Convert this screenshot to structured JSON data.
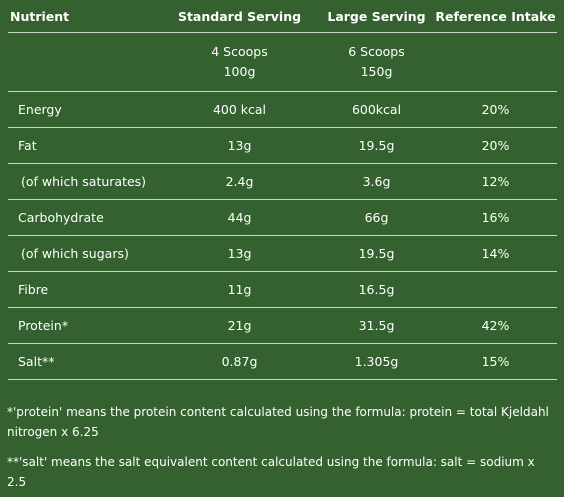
{
  "table": {
    "headers": [
      "Nutrient",
      "Standard Serving",
      "Large Serving",
      "Reference Intake"
    ],
    "serving": {
      "standard_scoops": "4 Scoops",
      "standard_weight": "100g",
      "large_scoops": "6 Scoops",
      "large_weight": "150g"
    },
    "rows": [
      {
        "nutrient": "Energy",
        "standard": "400 kcal",
        "large": "600kcal",
        "reference": "20%"
      },
      {
        "nutrient": "Fat",
        "standard": "13g",
        "large": "19.5g",
        "reference": "20%"
      },
      {
        "nutrient": "(of which saturates)",
        "standard": "2.4g",
        "large": "3.6g",
        "reference": "12%"
      },
      {
        "nutrient": "Carbohydrate",
        "standard": "44g",
        "large": "66g",
        "reference": "16%"
      },
      {
        "nutrient": "(of which sugars)",
        "standard": "13g",
        "large": "19.5g",
        "reference": "14%"
      },
      {
        "nutrient": "Fibre",
        "standard": "11g",
        "large": "16.5g",
        "reference": ""
      },
      {
        "nutrient": "Protein*",
        "standard": "21g",
        "large": "31.5g",
        "reference": "42%"
      },
      {
        "nutrient": "Salt**",
        "standard": "0.87g",
        "large": "1.305g",
        "reference": "15%"
      }
    ]
  },
  "footnotes": {
    "protein": "*'protein' means the protein content calculated using the formula: protein = total Kjeldahl nitrogen x 6.25",
    "salt": "**'salt' means the salt equivalent content calculated using the formula: salt = sodium x 2.5"
  }
}
